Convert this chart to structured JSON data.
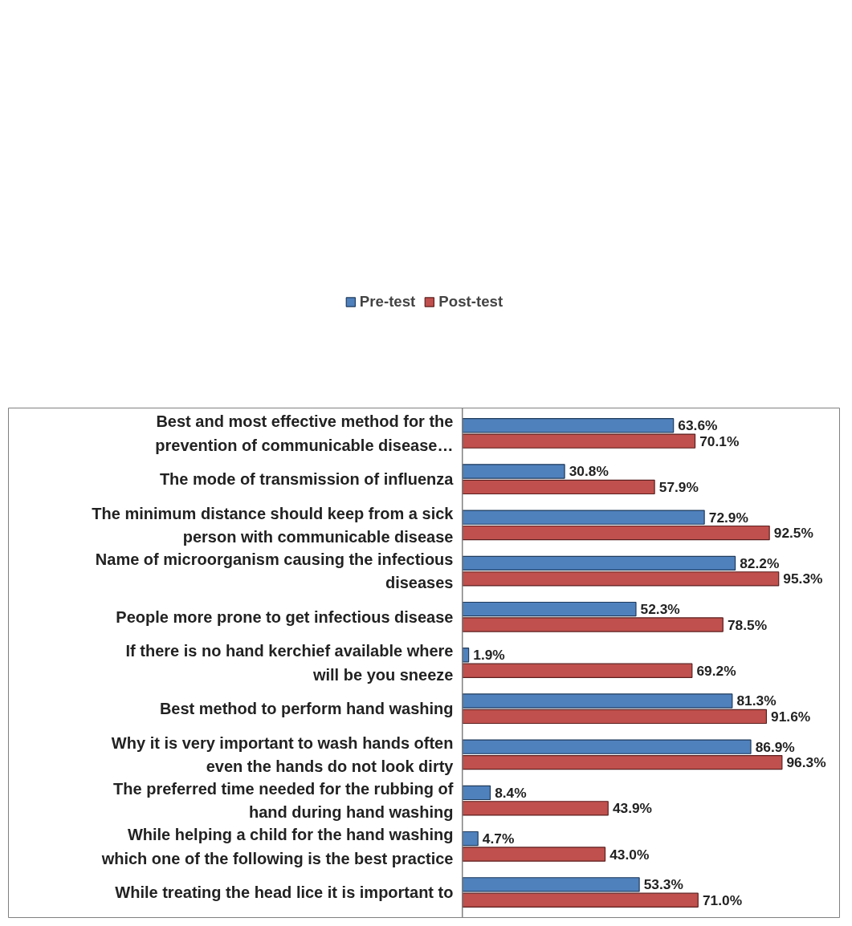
{
  "chart_data": {
    "type": "bar",
    "orientation": "horizontal",
    "tick_labels": false,
    "legend": "top",
    "categories": [
      "Best and most effective method for the prevention of communicable disease…",
      "The mode of transmission of influenza",
      "The minimum distance should keep from a sick person with communicable disease",
      "Name of microorganism causing the infectious diseases",
      "People more prone to get infectious disease",
      "If there is no hand kerchief available where will be you sneeze",
      "Best method to perform hand washing",
      "Why it is very important to wash hands often even the hands do not look dirty",
      "The preferred time needed for the rubbing of hand during hand washing",
      "While helping a child for the hand washing which one of the following is the best practice",
      "While treating the head lice it is important to"
    ],
    "series": [
      {
        "name": "Pre-test",
        "color": "#4f81bd",
        "values": [
          63.6,
          30.8,
          72.9,
          82.2,
          52.3,
          1.9,
          81.3,
          86.9,
          8.4,
          4.7,
          53.3
        ],
        "value_labels": [
          "63.6%",
          "30.8%",
          "72.9%",
          "82.2%",
          "52.3%",
          "1.9%",
          "81.3%",
          "86.9%",
          "8.4%",
          "4.7%",
          "53.3%"
        ]
      },
      {
        "name": "Post-test",
        "color": "#c0504d",
        "values": [
          70.1,
          57.9,
          92.5,
          95.3,
          78.5,
          69.2,
          91.6,
          96.3,
          43.9,
          43.0,
          71.0
        ],
        "value_labels": [
          "70.1%",
          "57.9%",
          "92.5%",
          "95.3%",
          "78.5%",
          "69.2%",
          "91.6%",
          "96.3%",
          "43.9%",
          "43.0%",
          "71.0%"
        ]
      }
    ]
  }
}
